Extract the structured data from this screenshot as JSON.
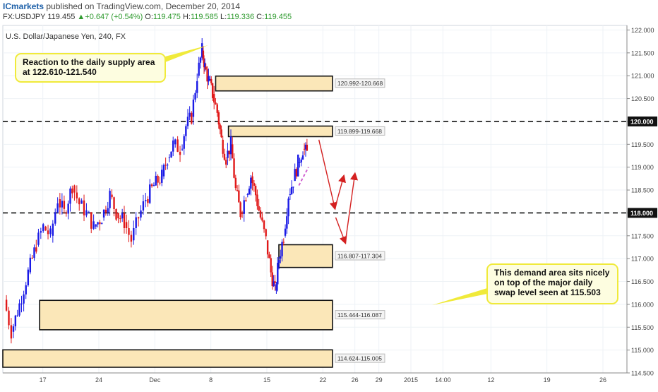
{
  "header": {
    "brand": "ICmarkets",
    "published": "published on TradingView.com, December 20, 2014",
    "symbol": "FX:USDJPY",
    "last": "119.455",
    "change_arrow": "▲",
    "change": "+0.647 (+0.54%)",
    "o_label": "O:",
    "o": "119.475",
    "h_label": "H:",
    "h": "119.585",
    "l_label": "L:",
    "l": "119.336",
    "c_label": "C:",
    "c": "119.455"
  },
  "chart_data": {
    "type": "candlestick",
    "title": "U.S. Dollar/Japanese Yen, 240, FX",
    "ylim": [
      114.5,
      122.1
    ],
    "y_ticks": [
      "122.000",
      "121.500",
      "121.000",
      "120.500",
      "120.000",
      "119.500",
      "119.000",
      "118.500",
      "118.000",
      "117.500",
      "117.000",
      "116.500",
      "116.000",
      "115.500",
      "115.000",
      "114.500"
    ],
    "x_ticks": [
      {
        "label": "17",
        "x": 17
      },
      {
        "label": "24",
        "x": 24
      },
      {
        "label": "Dec",
        "x": 31
      },
      {
        "label": "8",
        "x": 38
      },
      {
        "label": "15",
        "x": 45
      },
      {
        "label": "22",
        "x": 52
      },
      {
        "label": "26",
        "x": 56
      },
      {
        "label": "29",
        "x": 59
      },
      {
        "label": "2015",
        "x": 63
      },
      {
        "label": "14:00",
        "x": 67
      },
      {
        "label": "12",
        "x": 73
      },
      {
        "label": "19",
        "x": 80
      },
      {
        "label": "26",
        "x": 87
      }
    ],
    "xlim": [
      12,
      90
    ],
    "price_path": [
      [
        12.3,
        116.1
      ],
      [
        13.2,
        115.4
      ],
      [
        14.2,
        116.0
      ],
      [
        15.3,
        116.7
      ],
      [
        16.3,
        117.3
      ],
      [
        17.2,
        117.7
      ],
      [
        18.1,
        117.5
      ],
      [
        19.0,
        118.3
      ],
      [
        19.8,
        118.0
      ],
      [
        20.8,
        118.6
      ],
      [
        21.7,
        118.2
      ],
      [
        22.6,
        118.0
      ],
      [
        23.5,
        117.7
      ],
      [
        24.5,
        117.9
      ],
      [
        25.5,
        118.4
      ],
      [
        26.3,
        118.0
      ],
      [
        27.3,
        117.8
      ],
      [
        28.2,
        117.4
      ],
      [
        29.1,
        117.9
      ],
      [
        30.0,
        118.3
      ],
      [
        31.0,
        118.6
      ],
      [
        32.0,
        118.8
      ],
      [
        32.7,
        119.2
      ],
      [
        33.4,
        119.5
      ],
      [
        34.3,
        119.4
      ],
      [
        35.0,
        119.9
      ],
      [
        35.7,
        120.1
      ],
      [
        36.4,
        121.0
      ],
      [
        37.0,
        121.55
      ],
      [
        37.3,
        121.2
      ],
      [
        37.8,
        120.9
      ],
      [
        38.3,
        120.6
      ],
      [
        38.9,
        120.2
      ],
      [
        39.4,
        119.6
      ],
      [
        40.0,
        119.2
      ],
      [
        40.6,
        119.5
      ],
      [
        41.2,
        118.5
      ],
      [
        41.8,
        118.0
      ],
      [
        42.5,
        118.4
      ],
      [
        43.1,
        118.8
      ],
      [
        43.7,
        118.4
      ],
      [
        44.3,
        117.9
      ],
      [
        45.0,
        117.4
      ],
      [
        45.6,
        116.7
      ],
      [
        46.1,
        116.3
      ],
      [
        46.6,
        117.0
      ],
      [
        47.2,
        117.5
      ],
      [
        47.8,
        118.4
      ],
      [
        48.4,
        118.7
      ],
      [
        49.0,
        119.1
      ],
      [
        49.6,
        119.4
      ],
      [
        50.1,
        119.3
      ]
    ],
    "horizontal_levels": [
      {
        "price": 120.0,
        "label": "120.000"
      },
      {
        "price": 118.0,
        "label": "118.000"
      }
    ],
    "zones": [
      {
        "label": "120.992-120.668",
        "top": 120.992,
        "bottom": 120.668,
        "x0": 38.6,
        "x1": 53.2
      },
      {
        "label": "119.899-119.668",
        "top": 119.899,
        "bottom": 119.668,
        "x0": 40.2,
        "x1": 53.2
      },
      {
        "label": "116.807-117.304",
        "top": 117.304,
        "bottom": 116.807,
        "x0": 46.5,
        "x1": 53.2
      },
      {
        "label": "115.444-116.087",
        "top": 116.087,
        "bottom": 115.444,
        "x0": 16.6,
        "x1": 53.2
      },
      {
        "label": "114.624-115.005",
        "top": 115.005,
        "bottom": 114.624,
        "x0": 12.0,
        "x1": 53.2
      }
    ],
    "annotations": [
      {
        "text": [
          "Reaction to the daily supply area",
          "at 122.610-121.540"
        ]
      },
      {
        "text": [
          "This demand area sits nicely",
          "on top of the major daily",
          "swap level seen at 115.503"
        ]
      }
    ],
    "colors": {
      "bull": "#1a1ae6",
      "bear": "#e01818",
      "zone_fill": "#fbe7b8",
      "zone_stroke": "#111111",
      "callout_fill": "#fdfde0",
      "callout_stroke": "#f0ea3a",
      "arrow": "#d42020",
      "trendline": "#d060d0",
      "grid": "#eef2f6"
    }
  }
}
